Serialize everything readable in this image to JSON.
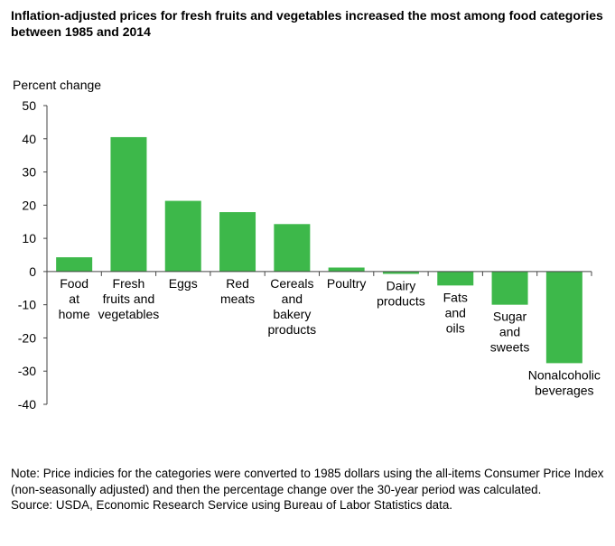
{
  "chart_data": {
    "type": "bar",
    "title": "Inflation-adjusted prices for fresh fruits and vegetables increased the most among food categories between 1985 and 2014",
    "ylabel": "Percent change",
    "xlabel": "",
    "ylim": [
      -40,
      50
    ],
    "yticks": [
      50,
      40,
      30,
      20,
      10,
      0,
      -10,
      -20,
      -30,
      -40
    ],
    "grid": false,
    "categories": [
      [
        "Food",
        "at",
        "home"
      ],
      [
        "Fresh",
        "fruits and",
        "vegetables"
      ],
      [
        "Eggs"
      ],
      [
        "Red",
        "meats"
      ],
      [
        "Cereals",
        "and",
        "bakery",
        "products"
      ],
      [
        "Poultry"
      ],
      [
        "Dairy",
        "products"
      ],
      [
        "Fats",
        "and",
        "oils"
      ],
      [
        "Sugar",
        "and",
        "sweets"
      ],
      [
        "Nonalcoholic",
        "beverages"
      ]
    ],
    "values": [
      4.3,
      40.5,
      21.3,
      17.9,
      14.3,
      1.2,
      -0.7,
      -4.2,
      -10.0,
      -27.6
    ],
    "bar_color": "#3db84a"
  },
  "footer": {
    "note": "Note: Price indicies for the categories were converted to 1985 dollars using the all-items Consumer Price Index (non-seasonally adjusted) and then the percentage change over the 30-year period was calculated.",
    "source": "Source: USDA, Economic Research Service using Bureau of Labor Statistics data."
  }
}
